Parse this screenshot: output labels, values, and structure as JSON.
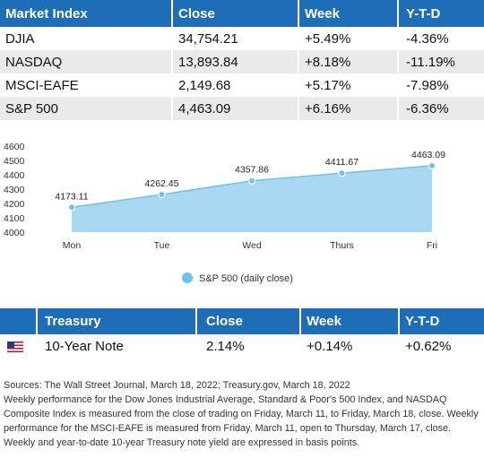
{
  "market_table": {
    "headers": [
      "Market Index",
      "Close",
      "Week",
      "Y-T-D"
    ],
    "rows": [
      [
        "DJIA",
        "34,754.21",
        "+5.49%",
        "-4.36%"
      ],
      [
        "NASDAQ",
        "13,893.84",
        "+8.18%",
        "-11.19%"
      ],
      [
        "MSCI-EAFE",
        "2,149.68",
        "+5.17%",
        "-7.98%"
      ],
      [
        "S&P 500",
        "4,463.09",
        "+6.16%",
        "-6.36%"
      ]
    ]
  },
  "chart_data": {
    "type": "area",
    "categories": [
      "Mon",
      "Tue",
      "Wed",
      "Thurs",
      "Fri"
    ],
    "series": [
      {
        "name": "S&P 500 (daily close)",
        "values": [
          4173.11,
          4262.45,
          4357.86,
          4411.67,
          4463.09
        ]
      }
    ],
    "data_labels": [
      "4173.11",
      "4262.45",
      "4357.86",
      "4411.67",
      "4463.09"
    ],
    "yticks": [
      "4600",
      "4500",
      "4400",
      "4300",
      "4200",
      "4100",
      "4000"
    ],
    "ylim": [
      4000,
      4600
    ],
    "legend_position": "bottom",
    "colors": {
      "fill": "#a9d9f2",
      "line": "#6fc0ec",
      "point": "#6fc0ec"
    }
  },
  "treasury_table": {
    "headers": [
      "Treasury",
      "Close",
      "Week",
      "Y-T-D"
    ],
    "row": {
      "flag_icon": "us-flag-icon",
      "name": "10-Year Note",
      "close": "2.14%",
      "week": "+0.14%",
      "ytd": "+0.62%"
    }
  },
  "notes": {
    "sources": "Sources: The Wall Street Journal, March 18, 2022; Treasury.gov, March 18, 2022",
    "text": "Weekly performance for the Dow Jones Industrial Average, Standard & Poor's 500 Index, and NASDAQ Composite Index is measured from the close of trading on Friday, March 11, to Friday, March 18, close. Weekly performance for the MSCI-EAFE is measured from Friday, March 11, open to Thursday, March 17, close. Weekly and year-to-date 10-year Treasury note yield are expressed in basis points."
  },
  "colors": {
    "header": "#1d6eb7",
    "row_alt": "#eaeaea"
  }
}
